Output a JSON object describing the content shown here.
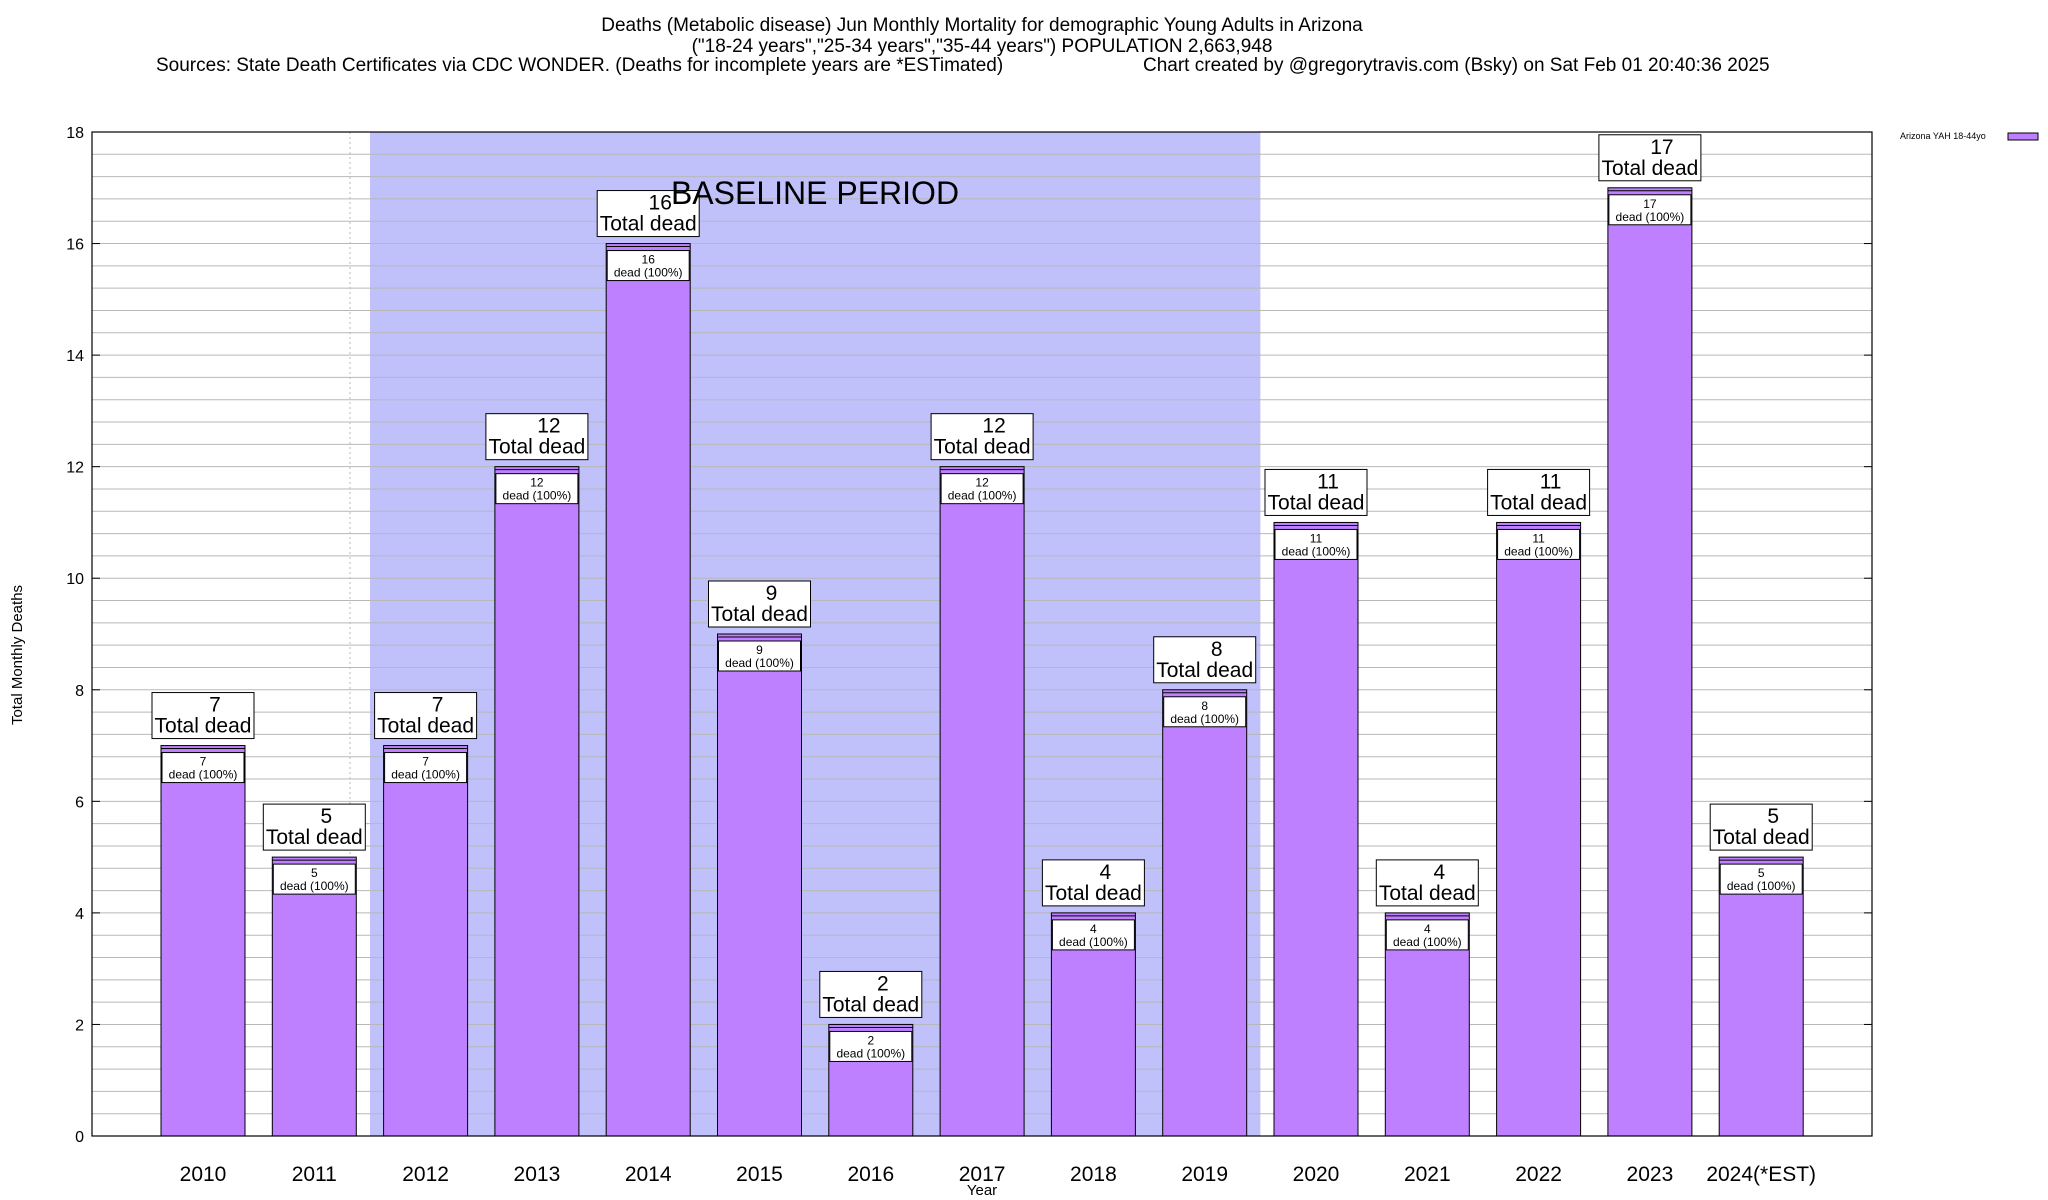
{
  "title_lines": [
    "Deaths (Metabolic disease) Jun Monthly Mortality for demographic Young Adults in Arizona",
    "(\"18-24 years\",\"25-34 years\",\"35-44 years\") POPULATION 2,663,948",
    "Sources: State Death Certificates via CDC WONDER. (Deaths for incomplete years are *ESTimated)",
    "Chart created by @gregorytravis.com (Bsky) on Sat Feb 01 20:40:36 2025"
  ],
  "colors": {
    "bar_fill": "#bf80ff",
    "bar_top": "#a060e0",
    "baseline_band": "#c0c0fa",
    "grid": "#b8b8b8",
    "axis": "#000000"
  },
  "chart_data": {
    "type": "bar",
    "categories": [
      "2010",
      "2011",
      "2012",
      "2013",
      "2014",
      "2015",
      "2016",
      "2017",
      "2018",
      "2019",
      "2020",
      "2021",
      "2022",
      "2023",
      "2024(*EST)"
    ],
    "series": [
      {
        "name": "Arizona YAH 18-44yo",
        "values": [
          7,
          5,
          7,
          12,
          16,
          9,
          2,
          12,
          4,
          8,
          11,
          4,
          11,
          17,
          5
        ]
      }
    ],
    "bar_labels_top": [
      "7",
      "5",
      "7",
      "12",
      "16",
      "9",
      "2",
      "12",
      "4",
      "8",
      "11",
      "4",
      "11",
      "17",
      "5"
    ],
    "total_label_text": "Total dead",
    "inner_label_value": [
      "7",
      "5",
      "7",
      "12",
      "16",
      "9",
      "2",
      "12",
      "4",
      "8",
      "11",
      "4",
      "11",
      "17",
      "5"
    ],
    "inner_label_text": "dead (100%)",
    "xlabel": "Year",
    "ylabel": "Total Monthly Deaths",
    "ylim": [
      0,
      18
    ],
    "yticks": [
      "0",
      "2",
      "4",
      "6",
      "8",
      "10",
      "12",
      "14",
      "16",
      "18"
    ],
    "minor_grid_step": 0.4,
    "baseline_period": {
      "label": "BASELINE PERIOD",
      "start_category": "2012",
      "end_category": "2019"
    },
    "legend": {
      "placement": "top-right-outside",
      "entry": "Arizona YAH 18-44yo"
    },
    "grid": true
  }
}
